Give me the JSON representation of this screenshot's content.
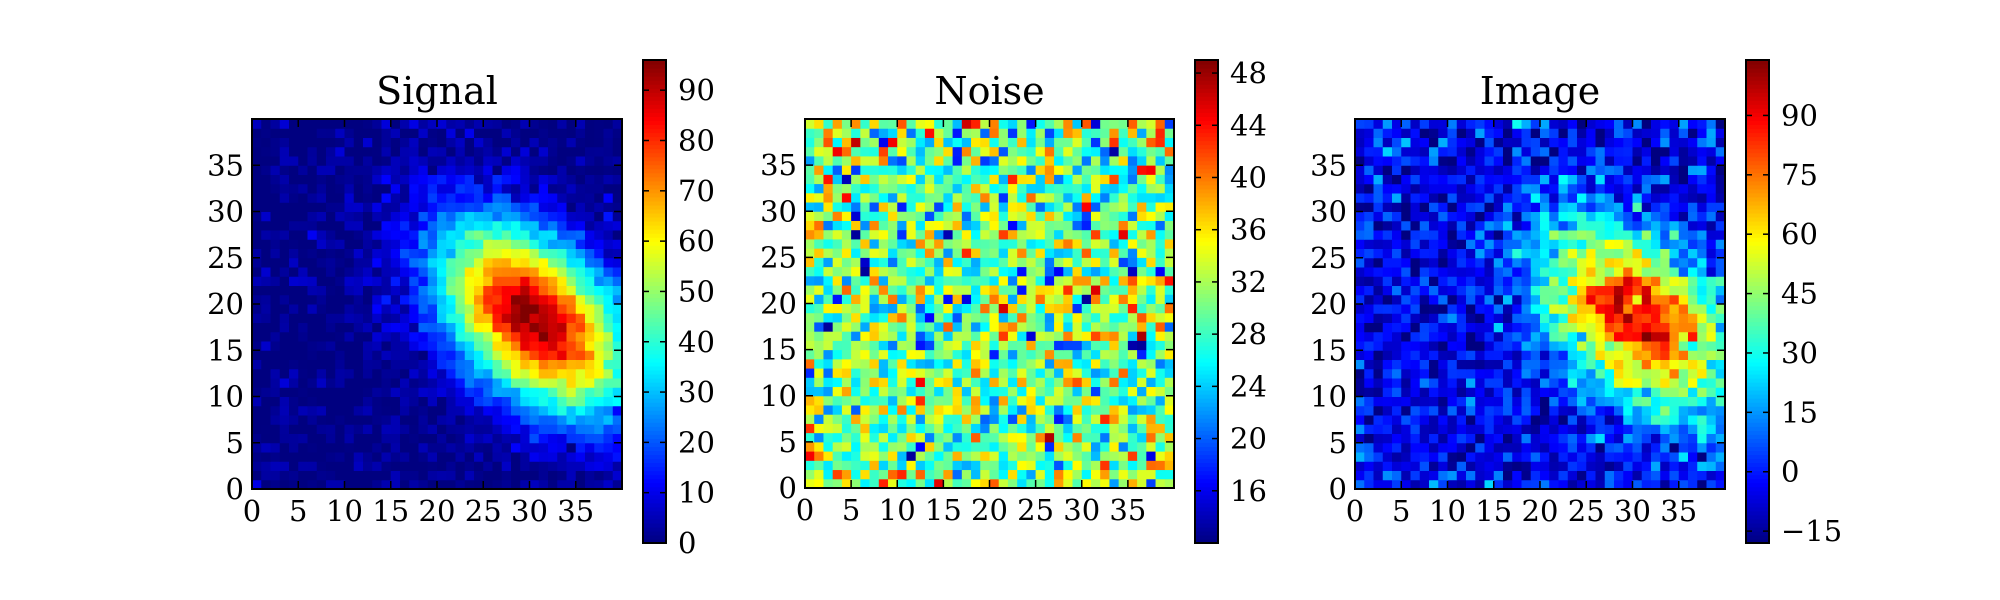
{
  "chart_data": [
    {
      "type": "heatmap",
      "title": "Signal",
      "colormap": "jet",
      "grid": false,
      "xlim": [
        0,
        40
      ],
      "ylim": [
        0,
        40
      ],
      "x_ticks": [
        0,
        5,
        10,
        15,
        20,
        25,
        30,
        35
      ],
      "y_ticks": [
        0,
        5,
        10,
        15,
        20,
        25,
        30,
        35
      ],
      "colorbar": {
        "min": 0,
        "max": 96,
        "ticks": [
          0,
          10,
          20,
          30,
          40,
          50,
          60,
          70,
          80,
          90
        ]
      },
      "description_values": {
        "peak_x": 30,
        "peak_y": 18,
        "peak_value": 95
      }
    },
    {
      "type": "heatmap",
      "title": "Noise",
      "colormap": "jet",
      "grid": false,
      "xlim": [
        0,
        40
      ],
      "ylim": [
        0,
        40
      ],
      "x_ticks": [
        0,
        5,
        10,
        15,
        20,
        25,
        30,
        35
      ],
      "y_ticks": [
        0,
        5,
        10,
        15,
        20,
        25,
        30,
        35
      ],
      "colorbar": {
        "min": 12,
        "max": 49,
        "ticks": [
          16,
          20,
          24,
          28,
          32,
          36,
          40,
          44,
          48
        ]
      },
      "description_values": {
        "mean_value": 30
      }
    },
    {
      "type": "heatmap",
      "title": "Image",
      "colormap": "jet",
      "grid": false,
      "xlim": [
        0,
        40
      ],
      "ylim": [
        0,
        40
      ],
      "x_ticks": [
        0,
        5,
        10,
        15,
        20,
        25,
        30,
        35
      ],
      "y_ticks": [
        0,
        5,
        10,
        15,
        20,
        25,
        30,
        35
      ],
      "colorbar": {
        "min": -18,
        "max": 104,
        "ticks": [
          -15,
          0,
          15,
          30,
          45,
          60,
          75,
          90
        ]
      },
      "description_values": {
        "peak_x": 30,
        "peak_y": 18,
        "peak_value": 100
      }
    }
  ]
}
